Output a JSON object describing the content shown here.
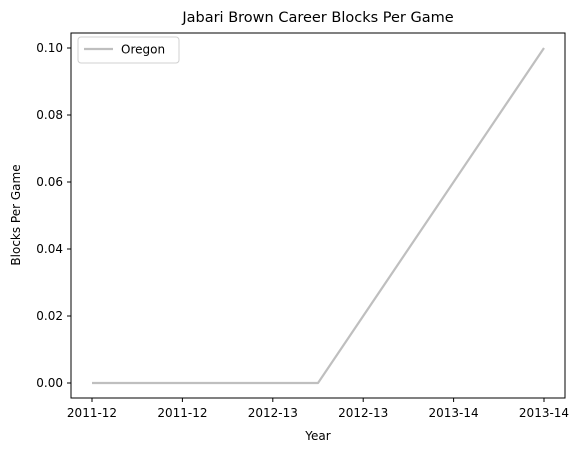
{
  "chart_data": {
    "type": "line",
    "title": "Jabari Brown Career Blocks Per Game",
    "xlabel": "Year",
    "ylabel": "Blocks Per Game",
    "x_tick_labels": [
      "2011-12",
      "2011-12",
      "2012-13",
      "2012-13",
      "2013-14",
      "2013-14"
    ],
    "x_range": [
      0,
      5
    ],
    "ylim": [
      0,
      0.1
    ],
    "y_ticks": [
      0.0,
      0.02,
      0.04,
      0.06,
      0.08,
      0.1
    ],
    "y_tick_labels": [
      "0.00",
      "0.02",
      "0.04",
      "0.06",
      "0.08",
      "0.10"
    ],
    "grid": false,
    "legend_position": "top-left",
    "series": [
      {
        "name": "Oregon",
        "color": "#bfbfbf",
        "x": [
          0,
          2.5,
          5
        ],
        "y": [
          0.0,
          0.0,
          0.1
        ]
      }
    ]
  }
}
